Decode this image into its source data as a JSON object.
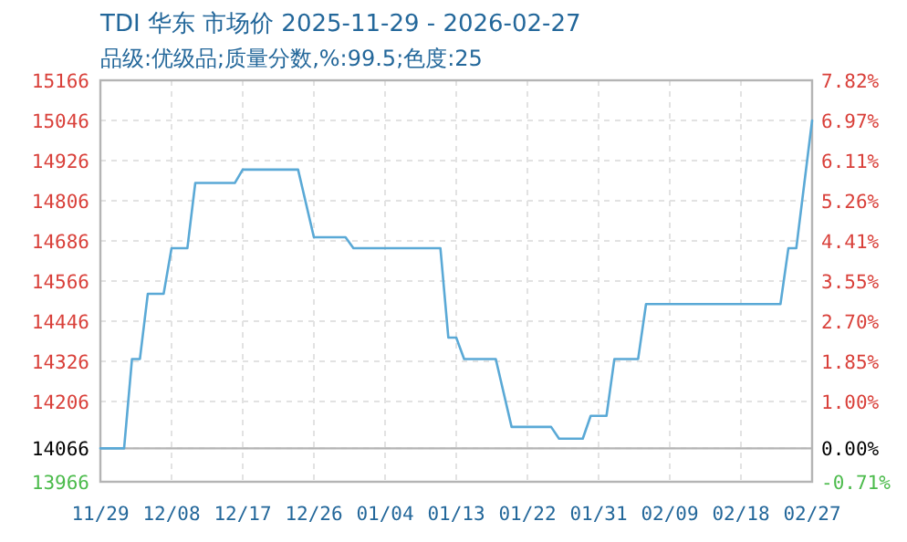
{
  "chart_data": {
    "type": "line",
    "title": "TDI 华东 市场价 2025-11-29 - 2026-02-27",
    "subtitle": "品级:优级品;质量分数,%:99.5;色度:25",
    "x": [
      "2025-11-29",
      "2025-12-02",
      "2025-12-03",
      "2025-12-04",
      "2025-12-05",
      "2025-12-07",
      "2025-12-08",
      "2025-12-10",
      "2025-12-11",
      "2025-12-16",
      "2025-12-17",
      "2025-12-24",
      "2025-12-26",
      "2025-12-30",
      "2025-12-31",
      "2026-01-11",
      "2026-01-12",
      "2026-01-13",
      "2026-01-14",
      "2026-01-18",
      "2026-01-20",
      "2026-01-25",
      "2026-01-26",
      "2026-01-29",
      "2026-01-30",
      "2026-02-01",
      "2026-02-02",
      "2026-02-05",
      "2026-02-06",
      "2026-02-23",
      "2026-02-24",
      "2026-02-25",
      "2026-02-27"
    ],
    "series": [
      {
        "color": "#5aa9d6",
        "values": [
          14066,
          14066,
          14333,
          14333,
          14528,
          14528,
          14664,
          14664,
          14859,
          14859,
          14899,
          14899,
          14697,
          14697,
          14664,
          14664,
          14397,
          14397,
          14333,
          14333,
          14130,
          14130,
          14095,
          14095,
          14163,
          14163,
          14333,
          14333,
          14497,
          14497,
          14664,
          14664,
          15046
        ]
      }
    ],
    "xlim": [
      "2025-11-29",
      "2026-02-27"
    ],
    "xticks": [
      {
        "value": "2025-11-29",
        "label": "11/29"
      },
      {
        "value": "2025-12-08",
        "label": "12/08"
      },
      {
        "value": "2025-12-17",
        "label": "12/17"
      },
      {
        "value": "2025-12-26",
        "label": "12/26"
      },
      {
        "value": "2026-01-04",
        "label": "01/04"
      },
      {
        "value": "2026-01-13",
        "label": "01/13"
      },
      {
        "value": "2026-01-22",
        "label": "01/22"
      },
      {
        "value": "2026-01-31",
        "label": "01/31"
      },
      {
        "value": "2026-02-09",
        "label": "02/09"
      },
      {
        "value": "2026-02-18",
        "label": "02/18"
      },
      {
        "value": "2026-02-27",
        "label": "02/27"
      }
    ],
    "ylim": [
      13966,
      15166
    ],
    "yticks": [
      13966,
      14066,
      14206,
      14326,
      14446,
      14566,
      14686,
      14806,
      14926,
      15046,
      15166
    ],
    "y2lim": [
      -0.71,
      7.82
    ],
    "y2ticks": [
      {
        "value": -0.71,
        "label": "-0.71%"
      },
      {
        "value": 0,
        "label": "0.00%"
      },
      {
        "value": 1,
        "label": "1.00%"
      },
      {
        "value": 1.85,
        "label": "1.85%"
      },
      {
        "value": 2.7,
        "label": "2.70%"
      },
      {
        "value": 3.55,
        "label": "3.55%"
      },
      {
        "value": 4.41,
        "label": "4.41%"
      },
      {
        "value": 5.26,
        "label": "5.26%"
      },
      {
        "value": 6.11,
        "label": "6.11%"
      },
      {
        "value": 6.97,
        "label": "6.97%"
      },
      {
        "value": 7.82,
        "label": "7.82%"
      }
    ],
    "ref_lines": [
      {
        "axis": "y2",
        "value": 0,
        "color": "#b4b4b4"
      }
    ],
    "grid": true
  }
}
